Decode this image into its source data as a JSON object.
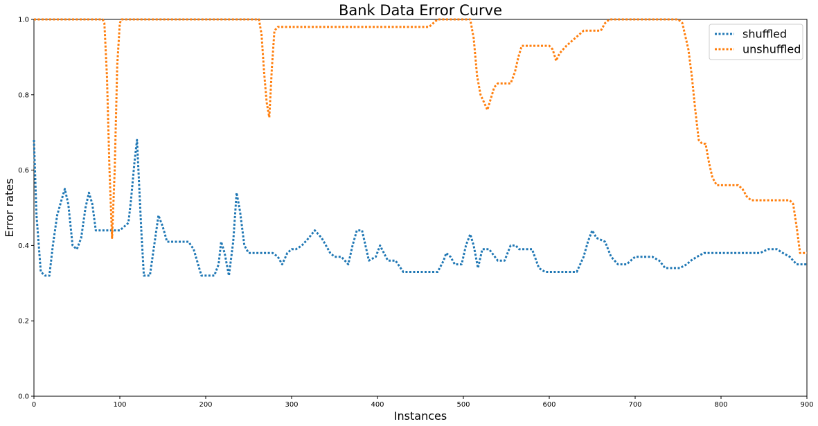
{
  "chart_data": {
    "type": "line",
    "title": "Bank Data Error Curve",
    "xlabel": "Instances",
    "ylabel": "Error rates",
    "xlim": [
      0,
      900
    ],
    "ylim": [
      0,
      1.0
    ],
    "xticks": [
      "0",
      "100",
      "200",
      "300",
      "400",
      "500",
      "600",
      "700",
      "800",
      "900"
    ],
    "yticks": [
      "0.0",
      "0.2",
      "0.4",
      "0.6",
      "0.8",
      "1.0"
    ],
    "grid": false,
    "legend_position": "top-right",
    "series": [
      {
        "name": "shuffled",
        "color": "#1f77b4",
        "style": "dotted",
        "x": [
          0,
          3,
          8,
          13,
          18,
          22,
          27,
          32,
          36,
          40,
          45,
          50,
          55,
          60,
          64,
          68,
          72,
          80,
          88,
          95,
          100,
          105,
          110,
          113,
          117,
          120,
          125,
          128,
          135,
          140,
          145,
          150,
          155,
          160,
          165,
          170,
          180,
          186,
          195,
          205,
          210,
          215,
          218,
          222,
          227,
          232,
          236,
          240,
          245,
          250,
          260,
          268,
          278,
          284,
          289,
          295,
          300,
          305,
          312,
          320,
          327,
          335,
          345,
          350,
          358,
          366,
          371,
          376,
          382,
          390,
          398,
          403,
          412,
          421,
          430,
          440,
          450,
          462,
          470,
          477,
          480,
          485,
          490,
          498,
          503,
          508,
          512,
          517,
          522,
          530,
          540,
          548,
          555,
          561,
          565,
          570,
          575,
          580,
          588,
          595,
          605,
          615,
          625,
          632,
          640,
          645,
          650,
          655,
          665,
          672,
          680,
          690,
          700,
          710,
          720,
          728,
          735,
          742,
          752,
          760,
          765,
          772,
          780,
          790,
          800,
          810,
          820,
          830,
          840,
          845,
          855,
          865,
          872,
          880,
          888,
          895,
          900
        ],
        "y": [
          0.68,
          0.48,
          0.33,
          0.32,
          0.32,
          0.4,
          0.48,
          0.52,
          0.55,
          0.51,
          0.4,
          0.39,
          0.42,
          0.5,
          0.54,
          0.51,
          0.44,
          0.44,
          0.44,
          0.44,
          0.44,
          0.45,
          0.46,
          0.52,
          0.62,
          0.68,
          0.44,
          0.32,
          0.32,
          0.4,
          0.48,
          0.45,
          0.41,
          0.41,
          0.41,
          0.41,
          0.41,
          0.39,
          0.32,
          0.32,
          0.32,
          0.35,
          0.41,
          0.38,
          0.32,
          0.41,
          0.54,
          0.49,
          0.4,
          0.38,
          0.38,
          0.38,
          0.38,
          0.37,
          0.35,
          0.38,
          0.39,
          0.39,
          0.4,
          0.42,
          0.44,
          0.42,
          0.38,
          0.37,
          0.37,
          0.35,
          0.4,
          0.44,
          0.44,
          0.36,
          0.37,
          0.4,
          0.36,
          0.36,
          0.33,
          0.33,
          0.33,
          0.33,
          0.33,
          0.36,
          0.38,
          0.37,
          0.35,
          0.35,
          0.4,
          0.43,
          0.4,
          0.34,
          0.39,
          0.39,
          0.36,
          0.36,
          0.4,
          0.4,
          0.39,
          0.39,
          0.39,
          0.39,
          0.34,
          0.33,
          0.33,
          0.33,
          0.33,
          0.33,
          0.37,
          0.41,
          0.44,
          0.42,
          0.41,
          0.37,
          0.35,
          0.35,
          0.37,
          0.37,
          0.37,
          0.36,
          0.34,
          0.34,
          0.34,
          0.35,
          0.36,
          0.37,
          0.38,
          0.38,
          0.38,
          0.38,
          0.38,
          0.38,
          0.38,
          0.38,
          0.39,
          0.39,
          0.38,
          0.37,
          0.35,
          0.35,
          0.35
        ]
      },
      {
        "name": "unshuffled",
        "color": "#ff7f0e",
        "style": "dotted",
        "x": [
          0,
          80,
          82,
          85,
          88,
          91,
          94,
          97,
          100,
          102,
          150,
          200,
          262,
          265,
          268,
          271,
          274,
          277,
          280,
          284,
          300,
          350,
          400,
          460,
          465,
          470,
          480,
          500,
          508,
          512,
          516,
          520,
          524,
          528,
          532,
          536,
          540,
          545,
          555,
          560,
          564,
          568,
          575,
          585,
          595,
          600,
          604,
          608,
          612,
          616,
          620,
          625,
          630,
          635,
          640,
          648,
          660,
          665,
          670,
          680,
          700,
          750,
          755,
          758,
          762,
          766,
          770,
          774,
          778,
          782,
          786,
          790,
          795,
          800,
          805,
          810,
          815,
          820,
          825,
          830,
          835,
          840,
          850,
          860,
          870,
          880,
          884,
          888,
          892,
          896,
          900
        ],
        "y": [
          1.0,
          1.0,
          0.99,
          0.85,
          0.6,
          0.42,
          0.6,
          0.88,
          0.99,
          1.0,
          1.0,
          1.0,
          1.0,
          0.96,
          0.86,
          0.78,
          0.74,
          0.87,
          0.97,
          0.98,
          0.98,
          0.98,
          0.98,
          0.98,
          0.99,
          1.0,
          1.0,
          1.0,
          1.0,
          0.95,
          0.85,
          0.8,
          0.78,
          0.76,
          0.79,
          0.82,
          0.83,
          0.83,
          0.83,
          0.86,
          0.9,
          0.93,
          0.93,
          0.93,
          0.93,
          0.93,
          0.92,
          0.89,
          0.91,
          0.92,
          0.93,
          0.94,
          0.95,
          0.96,
          0.97,
          0.97,
          0.97,
          0.99,
          1.0,
          1.0,
          1.0,
          1.0,
          0.99,
          0.96,
          0.92,
          0.85,
          0.76,
          0.68,
          0.67,
          0.67,
          0.62,
          0.58,
          0.56,
          0.56,
          0.56,
          0.56,
          0.56,
          0.56,
          0.55,
          0.53,
          0.52,
          0.52,
          0.52,
          0.52,
          0.52,
          0.52,
          0.51,
          0.45,
          0.38,
          0.38,
          0.38
        ]
      }
    ]
  }
}
